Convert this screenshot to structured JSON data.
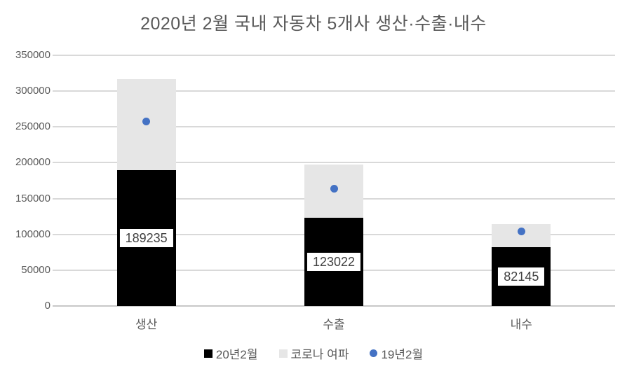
{
  "chart_data": {
    "type": "bar",
    "subtype": "stacked-bars-with-point-markers",
    "title": "2020년 2월 국내 자동차 5개사 생산·수출·내수",
    "categories": [
      "생산",
      "수출",
      "내수"
    ],
    "series": [
      {
        "name": "20년2월",
        "type": "bar",
        "color": "#000000",
        "values": [
          189235,
          123022,
          82145
        ],
        "data_labels": [
          "189235",
          "123022",
          "82145"
        ]
      },
      {
        "name": "코로나 여파",
        "type": "bar",
        "color": "#e6e6e6",
        "values": [
          128000,
          74000,
          32000
        ]
      },
      {
        "name": "19년2월",
        "type": "point",
        "color": "#4472c4",
        "values": [
          258000,
          164000,
          104500
        ]
      }
    ],
    "xlabel": "",
    "ylabel": "",
    "ylim": [
      0,
      350000
    ],
    "ytick_interval": 50000,
    "ytick_labels": [
      "350000",
      "300000",
      "250000",
      "200000",
      "150000",
      "100000",
      "50000",
      "0"
    ],
    "grid": true,
    "legend_position": "bottom",
    "colors": {
      "text": "#595959",
      "data_label_text": "#404040",
      "gridline": "#d9d9d9",
      "axis_line": "#c8c8c8",
      "background": "#ffffff"
    }
  }
}
